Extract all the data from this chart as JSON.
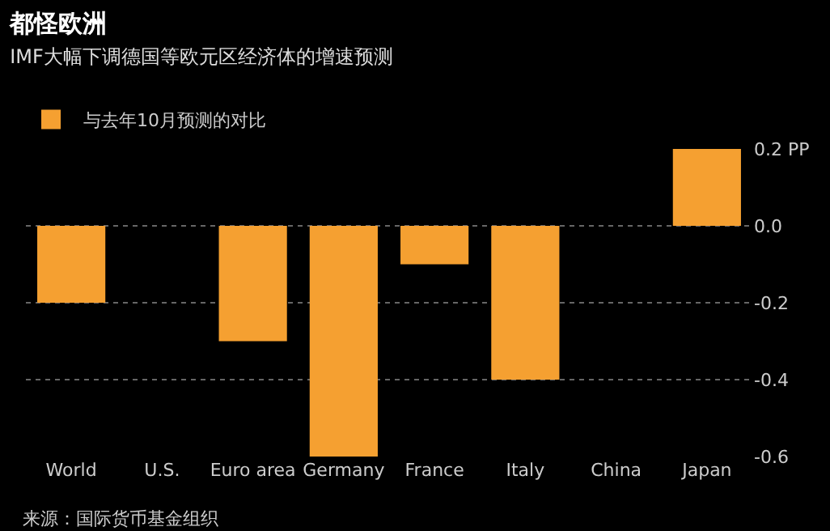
{
  "chart_data": {
    "type": "bar",
    "title": "都怪欧洲",
    "subtitle": "IMF大幅下调德国等欧元区经济体的增速预测",
    "categories": [
      "World",
      "U.S.",
      "Euro area",
      "Germany",
      "France",
      "Italy",
      "China",
      "Japan"
    ],
    "series": [
      {
        "name": "与去年10月预测的对比",
        "color": "#f5a031",
        "values": [
          -0.2,
          0,
          -0.3,
          -0.6,
          -0.1,
          -0.4,
          0,
          0.2
        ]
      }
    ],
    "ylim": [
      -0.6,
      0.2
    ],
    "yticks": [
      {
        "value": 0.2,
        "label": "0.2 PP"
      },
      {
        "value": 0,
        "label": "0.0"
      },
      -0.2,
      -0.4,
      -0.6
    ],
    "grid": "y",
    "legend": "top left",
    "annotations": [
      "来源：国际货币基金组织"
    ]
  }
}
